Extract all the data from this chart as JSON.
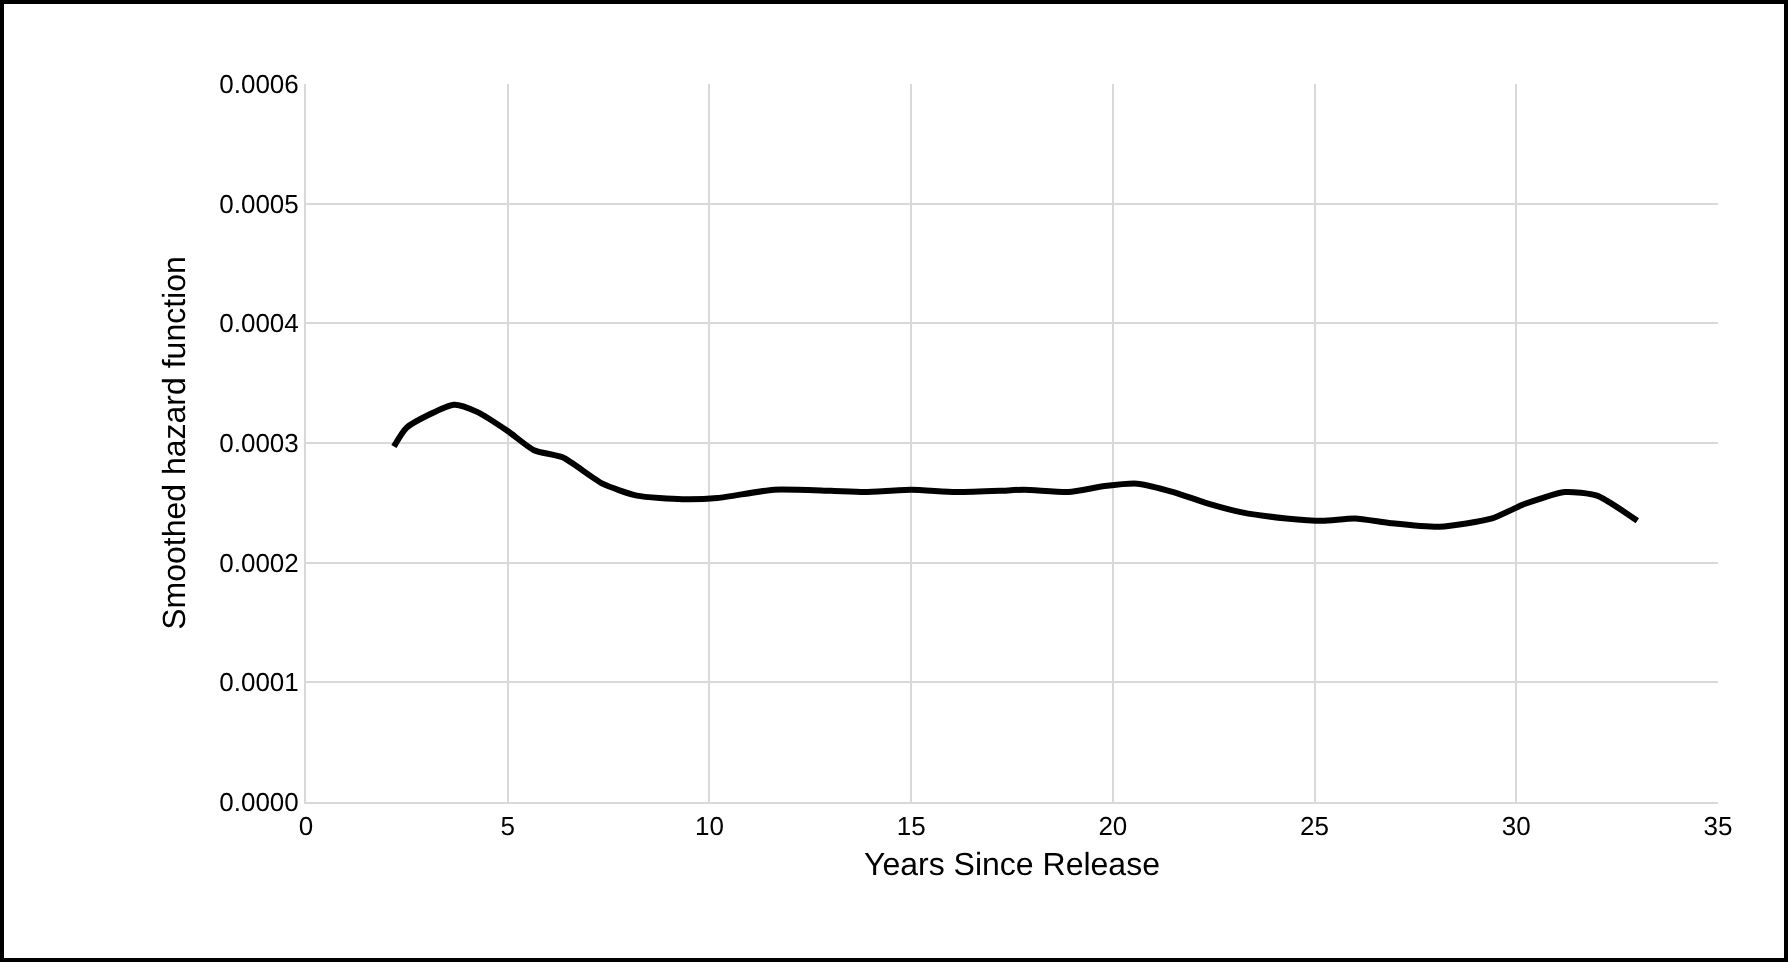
{
  "chart_data": {
    "type": "line",
    "xlabel": "Years Since Release",
    "ylabel": "Smoothed hazard function",
    "xlim": [
      0,
      35
    ],
    "xticks": [
      0,
      5,
      10,
      15,
      20,
      25,
      30,
      35
    ],
    "ylim": [
      0,
      0.0006
    ],
    "yticks": [
      {
        "value": 0,
        "label": "0.0000"
      },
      {
        "value": 0.0001,
        "label": "0.0001"
      },
      {
        "value": 0.0002,
        "label": "0.0002"
      },
      {
        "value": 0.0003,
        "label": "0.0003"
      },
      {
        "value": 0.0004,
        "label": "0.0004"
      },
      {
        "value": 0.0005,
        "label": "0.0005"
      },
      {
        "value": 0.0006,
        "label": "0.0006"
      }
    ],
    "grid": true,
    "marker": "none",
    "line_style": "solid",
    "x": [
      2.18,
      2.5,
      3.67,
      4.24,
      5,
      5.65,
      6.36,
      7.35,
      8.2,
      9.33,
      10.2,
      11.6,
      13,
      13.85,
      15,
      16.1,
      17.2,
      17.8,
      18.9,
      19.8,
      20.6,
      21.5,
      22.3,
      23.2,
      24.3,
      25.2,
      26,
      26.9,
      28.1,
      29.4,
      30.2,
      31.2,
      32,
      33
    ],
    "series": [
      {
        "color": "#000000",
        "values": [
          0.000297,
          0.000313,
          0.000332,
          0.000326,
          0.00031,
          0.000294,
          0.000288,
          0.000266,
          0.000256,
          0.000253,
          0.000254,
          0.000261,
          0.00026,
          0.000259,
          0.000261,
          0.000259,
          0.00026,
          0.000261,
          0.000259,
          0.000264,
          0.000266,
          0.000259,
          0.00025,
          0.000242,
          0.000237,
          0.000235,
          0.000237,
          0.000233,
          0.00023,
          0.000237,
          0.000249,
          0.000259,
          0.000256,
          0.000235
        ]
      }
    ]
  }
}
